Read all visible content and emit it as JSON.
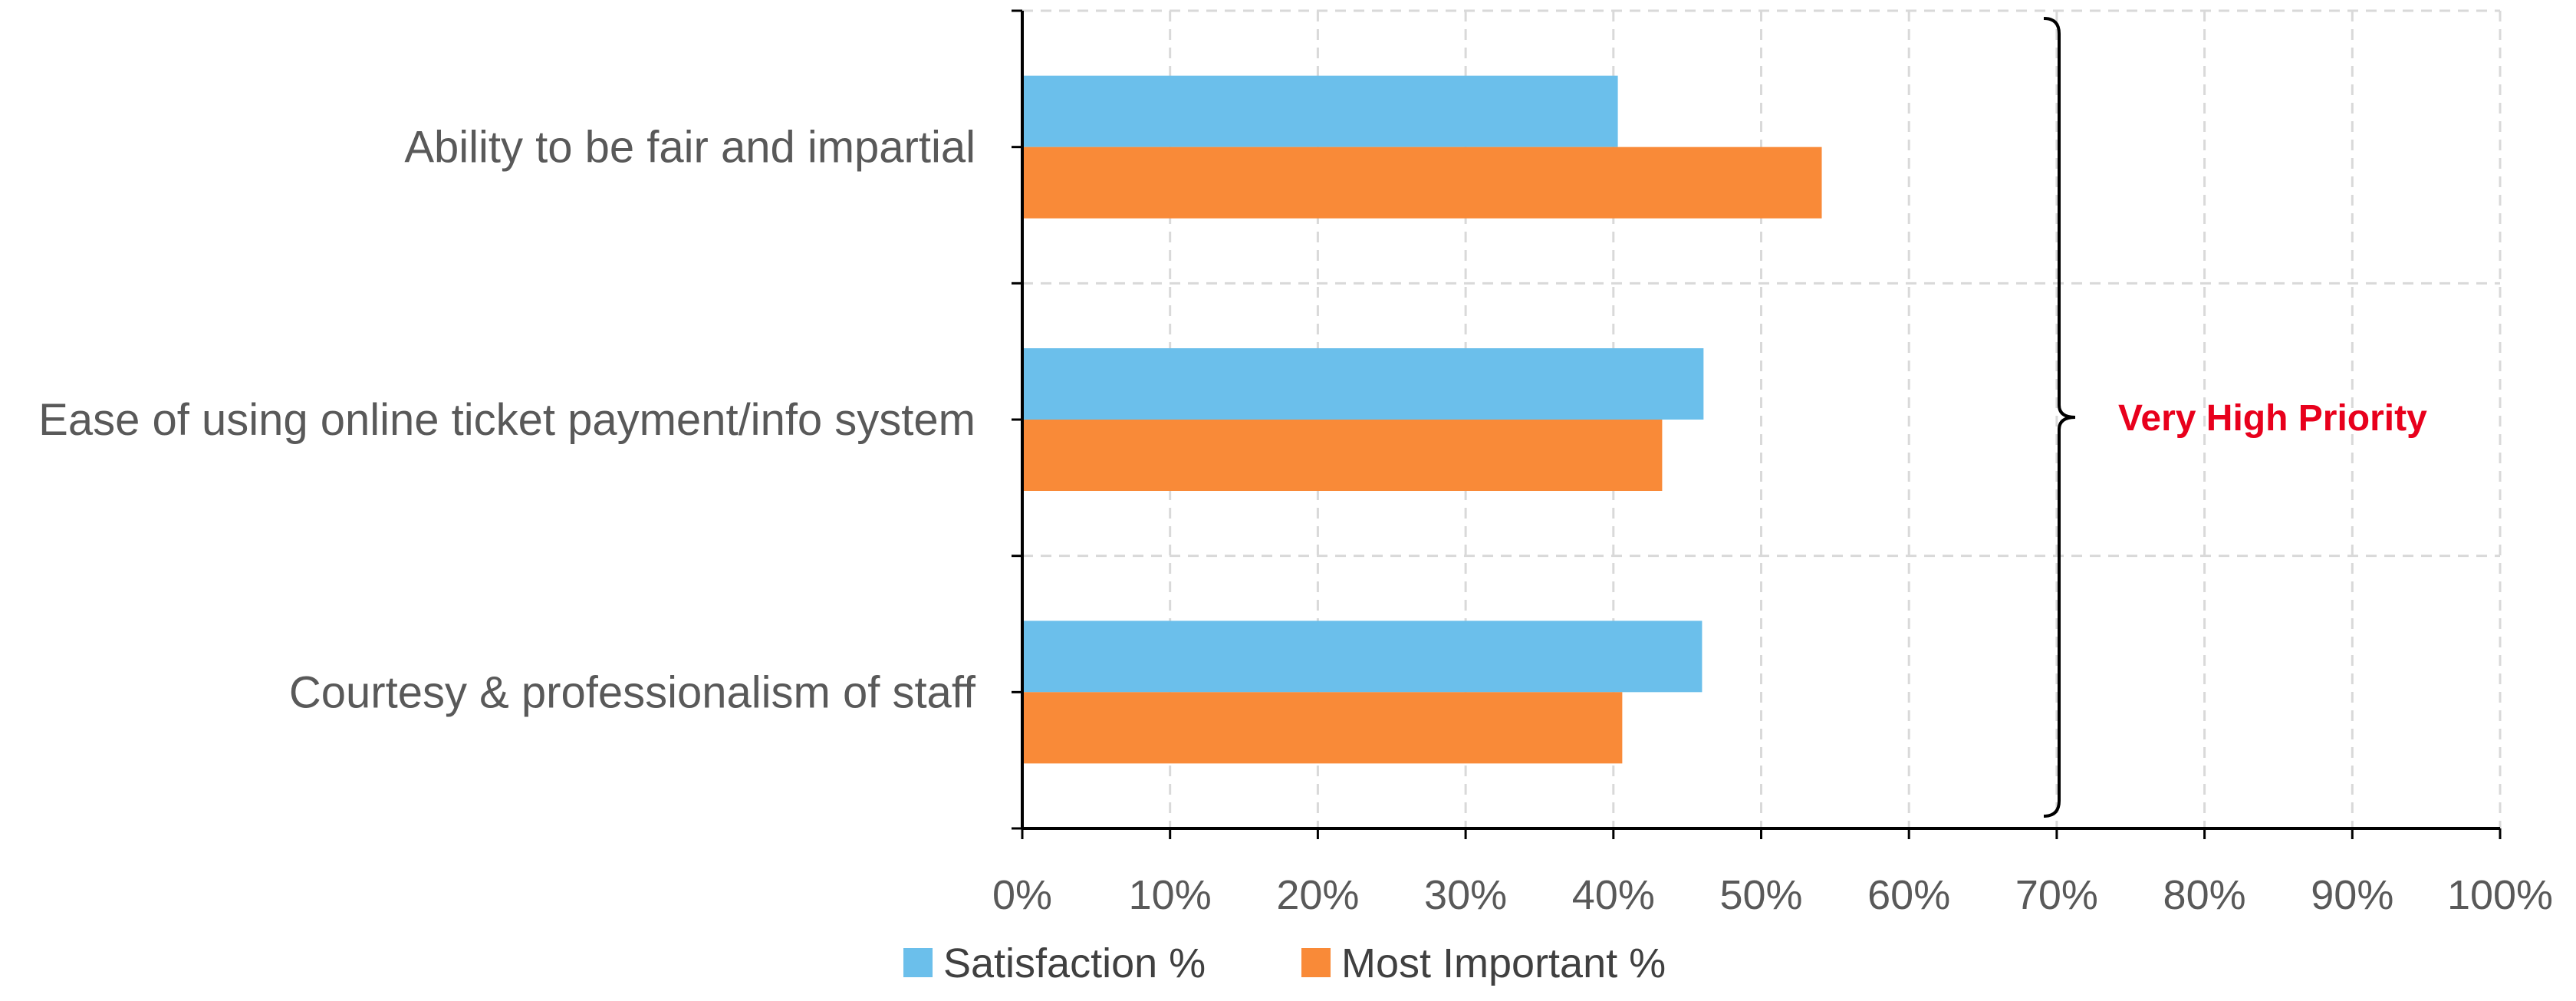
{
  "chart_data": {
    "type": "bar",
    "orientation": "horizontal",
    "categories": [
      "Ability to be fair and impartial",
      "Ease of using online ticket payment/info system",
      "Courtesy & professionalism of staff"
    ],
    "series": [
      {
        "name": "Satisfaction %",
        "values": [
          40.3,
          46.1,
          46.0
        ]
      },
      {
        "name": "Most Important %",
        "values": [
          54.1,
          43.3,
          40.6
        ]
      }
    ],
    "xlim": [
      0,
      100
    ],
    "x_tick_labels": [
      "0%",
      "10%",
      "20%",
      "30%",
      "40%",
      "50%",
      "60%",
      "70%",
      "80%",
      "90%",
      "100%"
    ],
    "grid": true,
    "legend": "bottom",
    "annotation": {
      "text": "Very High Priority",
      "color": "#e8001c"
    },
    "colors": {
      "series": [
        "#6bbfeb",
        "#f98a38"
      ],
      "label": "#595959",
      "grid": "#d9d9d9",
      "axis": "#000000"
    }
  }
}
